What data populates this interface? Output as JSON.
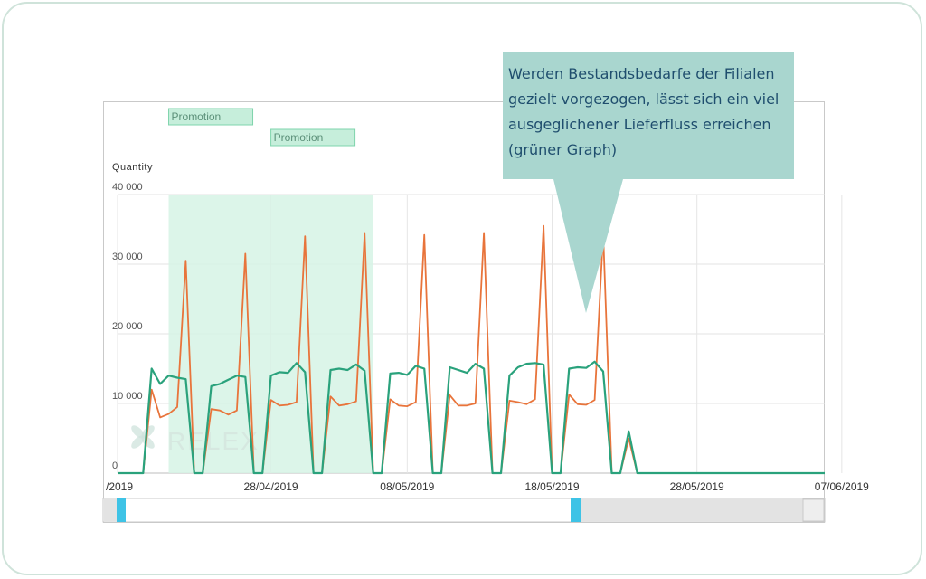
{
  "callout": {
    "text": "Werden Bestandsbedarfe der Filialen gezielt vorgezogen, lässt sich ein viel ausgeglichener Lieferfluss erreichen (grüner Graph)"
  },
  "watermark": {
    "text": "RELEX"
  },
  "chart_data": {
    "type": "line",
    "ylabel": "Quantity",
    "ylim": [
      0,
      40000
    ],
    "yticks": [
      {
        "value": 40000,
        "label": "40 000"
      },
      {
        "value": 30000,
        "label": "30 000"
      },
      {
        "value": 20000,
        "label": "20 000"
      },
      {
        "value": 10000,
        "label": "10 000"
      },
      {
        "value": 0,
        "label": "0"
      }
    ],
    "xlim": [
      0,
      83
    ],
    "xticks": [
      {
        "day": 0,
        "label": "/2019"
      },
      {
        "day": 18,
        "label": "28/04/2019"
      },
      {
        "day": 34,
        "label": "08/05/2019"
      },
      {
        "day": 51,
        "label": "18/05/2019"
      },
      {
        "day": 68,
        "label": "28/05/2019"
      },
      {
        "day": 85,
        "label": "07/06/2019"
      }
    ],
    "promotions": [
      {
        "label": "Promotion",
        "start": 6,
        "end": 18
      },
      {
        "label": "Promotion",
        "start": 18,
        "end": 30
      }
    ],
    "series": [
      {
        "color": "#e8743b",
        "x": [
          0,
          3,
          4,
          5,
          6,
          7,
          8,
          9,
          10,
          11,
          12,
          13,
          14,
          15,
          16,
          17,
          18,
          19,
          20,
          21,
          22,
          23,
          24,
          25,
          26,
          27,
          28,
          29,
          30,
          31,
          32,
          33,
          34,
          35,
          36,
          37,
          38,
          39,
          40,
          41,
          42,
          43,
          44,
          45,
          46,
          47,
          48,
          49,
          50,
          51,
          52,
          53,
          54,
          55,
          56,
          57,
          58,
          59,
          60,
          61,
          62,
          63,
          64,
          65,
          66,
          67,
          68,
          69,
          70,
          71,
          72,
          73,
          74,
          75,
          76,
          77,
          78,
          79,
          80,
          81,
          82,
          83
        ],
        "y": [
          0,
          0,
          12000,
          8000,
          8500,
          9500,
          30500,
          0,
          0,
          9200,
          9000,
          8400,
          9000,
          31500,
          0,
          0,
          10500,
          9700,
          9800,
          10200,
          34000,
          0,
          0,
          11000,
          9700,
          9900,
          10300,
          34500,
          0,
          0,
          10600,
          9700,
          9600,
          10200,
          34200,
          0,
          0,
          11200,
          9700,
          9700,
          10000,
          34500,
          0,
          0,
          10400,
          10200,
          9900,
          10600,
          35500,
          0,
          0,
          11300,
          9900,
          9800,
          10500,
          34500,
          0,
          0,
          5000,
          0,
          0,
          0,
          0,
          0,
          0,
          0,
          0,
          0,
          0,
          0,
          0,
          0,
          0,
          0,
          0,
          0,
          0,
          0,
          0,
          0,
          0,
          0
        ]
      },
      {
        "color": "#2aa27c",
        "x": [
          0,
          3,
          4,
          5,
          6,
          7,
          8,
          9,
          10,
          11,
          12,
          13,
          14,
          15,
          16,
          17,
          18,
          19,
          20,
          21,
          22,
          23,
          24,
          25,
          26,
          27,
          28,
          29,
          30,
          31,
          32,
          33,
          34,
          35,
          36,
          37,
          38,
          39,
          40,
          41,
          42,
          43,
          44,
          45,
          46,
          47,
          48,
          49,
          50,
          51,
          52,
          53,
          54,
          55,
          56,
          57,
          58,
          59,
          60,
          61,
          62,
          63,
          64,
          65,
          66,
          67,
          68,
          69,
          70,
          71,
          72,
          73,
          74,
          75,
          76,
          77,
          78,
          79,
          80,
          81,
          82,
          83
        ],
        "y": [
          0,
          0,
          15000,
          12800,
          14000,
          13700,
          13500,
          0,
          0,
          12500,
          12800,
          13400,
          14000,
          13800,
          0,
          0,
          14000,
          14500,
          14400,
          15800,
          14500,
          0,
          0,
          14800,
          15000,
          14800,
          15600,
          14700,
          0,
          0,
          14300,
          14400,
          14100,
          15400,
          15000,
          0,
          0,
          15200,
          14800,
          14400,
          15700,
          15000,
          0,
          0,
          14000,
          15200,
          15700,
          15800,
          15600,
          0,
          0,
          15000,
          15200,
          15100,
          16000,
          14600,
          0,
          0,
          6000,
          0,
          0,
          0,
          0,
          0,
          0,
          0,
          0,
          0,
          0,
          0,
          0,
          0,
          0,
          0,
          0,
          0,
          0,
          0,
          0,
          0,
          0,
          0
        ]
      }
    ]
  }
}
